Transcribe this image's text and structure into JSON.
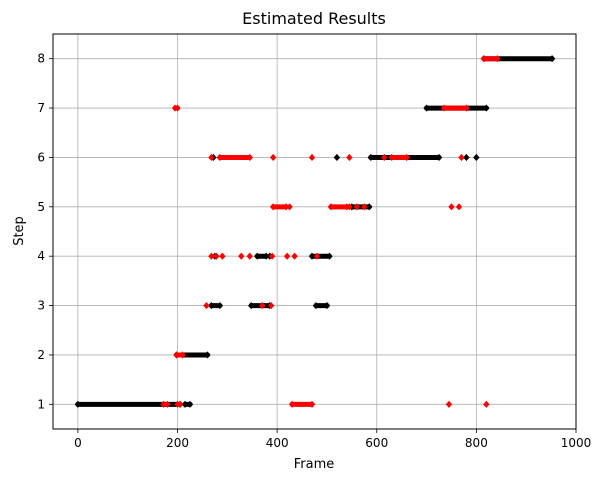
{
  "chart_data": {
    "type": "scatter",
    "title": "Estimated Results",
    "xlabel": "Frame",
    "ylabel": "Step",
    "xlim": [
      -50,
      1000
    ],
    "ylim": [
      0.5,
      8.5
    ],
    "xticks": [
      0,
      200,
      400,
      600,
      800,
      1000
    ],
    "yticks": [
      1,
      2,
      3,
      4,
      5,
      6,
      7,
      8
    ],
    "grid": true,
    "legend": "none",
    "marker": "diamond",
    "series": [
      {
        "color": "#000000",
        "segments": [
          {
            "y": 1,
            "x_from": 0,
            "x_to": 205
          },
          {
            "y": 1,
            "x_from": 215,
            "x_to": 225
          },
          {
            "y": 2,
            "x_from": 198,
            "x_to": 260
          },
          {
            "y": 3,
            "x_from": 268,
            "x_to": 285
          },
          {
            "y": 3,
            "x_from": 348,
            "x_to": 385
          },
          {
            "y": 3,
            "x_from": 478,
            "x_to": 500
          },
          {
            "y": 4,
            "x_from": 360,
            "x_to": 378
          },
          {
            "y": 4,
            "x_from": 470,
            "x_to": 505
          },
          {
            "y": 5,
            "x_from": 550,
            "x_to": 585
          },
          {
            "y": 6,
            "x_from": 588,
            "x_to": 725
          },
          {
            "y": 7,
            "x_from": 700,
            "x_to": 820
          },
          {
            "y": 8,
            "x_from": 815,
            "x_to": 952
          }
        ],
        "points": [
          {
            "x": 275,
            "y": 4
          },
          {
            "x": 385,
            "y": 4
          },
          {
            "x": 520,
            "y": 6
          },
          {
            "x": 780,
            "y": 6
          },
          {
            "x": 800,
            "y": 6
          },
          {
            "x": 272,
            "y": 6
          }
        ]
      },
      {
        "color": "#ff0000",
        "segments": [
          {
            "y": 2,
            "x_from": 198,
            "x_to": 210
          },
          {
            "y": 1,
            "x_from": 430,
            "x_to": 470
          },
          {
            "y": 5,
            "x_from": 392,
            "x_to": 418
          },
          {
            "y": 5,
            "x_from": 508,
            "x_to": 540
          },
          {
            "y": 6,
            "x_from": 285,
            "x_to": 345
          },
          {
            "y": 6,
            "x_from": 630,
            "x_to": 660
          },
          {
            "y": 7,
            "x_from": 735,
            "x_to": 780
          },
          {
            "y": 8,
            "x_from": 815,
            "x_to": 842
          }
        ],
        "points": [
          {
            "x": 172,
            "y": 1
          },
          {
            "x": 180,
            "y": 1
          },
          {
            "x": 200,
            "y": 1
          },
          {
            "x": 205,
            "y": 1
          },
          {
            "x": 745,
            "y": 1
          },
          {
            "x": 820,
            "y": 1
          },
          {
            "x": 258,
            "y": 3
          },
          {
            "x": 370,
            "y": 3
          },
          {
            "x": 388,
            "y": 3
          },
          {
            "x": 268,
            "y": 4
          },
          {
            "x": 278,
            "y": 4
          },
          {
            "x": 290,
            "y": 4
          },
          {
            "x": 328,
            "y": 4
          },
          {
            "x": 345,
            "y": 4
          },
          {
            "x": 390,
            "y": 4
          },
          {
            "x": 420,
            "y": 4
          },
          {
            "x": 435,
            "y": 4
          },
          {
            "x": 480,
            "y": 4
          },
          {
            "x": 425,
            "y": 5
          },
          {
            "x": 545,
            "y": 5
          },
          {
            "x": 560,
            "y": 5
          },
          {
            "x": 575,
            "y": 5
          },
          {
            "x": 750,
            "y": 5
          },
          {
            "x": 765,
            "y": 5
          },
          {
            "x": 268,
            "y": 6
          },
          {
            "x": 392,
            "y": 6
          },
          {
            "x": 470,
            "y": 6
          },
          {
            "x": 545,
            "y": 6
          },
          {
            "x": 615,
            "y": 6
          },
          {
            "x": 770,
            "y": 6
          },
          {
            "x": 195,
            "y": 7
          },
          {
            "x": 200,
            "y": 7
          }
        ]
      }
    ]
  }
}
